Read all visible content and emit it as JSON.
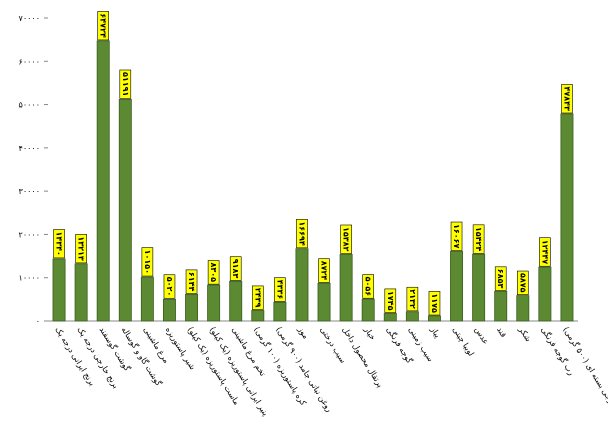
{
  "chart_data": {
    "type": "bar",
    "categories": [
      "برنج ایرانی درجه یک",
      "برنج خارجی درجه یک",
      "گوشت گوسفند",
      "گوشت گاو و گوساله",
      "مرغ ماشینی",
      "شیر پاستوریزه",
      "ماست پاستوریزه (یک کیلو)",
      "پنیر ایرانی پاستوریزه (یک کیلو)",
      "تخم مرغ ماشینی",
      "کره پاستوریزه (۱۰۰ گرمی)",
      "روغن نباتی جامد (۹۰۰ گرمی)",
      "موز",
      "سیب درختی",
      "پرتقال محصول داخل",
      "خیار",
      "گوجه فرنگی",
      "سیب زمینی",
      "پیاز",
      "لوبیا چیتی",
      "عدس",
      "قند",
      "شکر",
      "رب گوجه فرنگی",
      "چای خارجی بسته ای (۵۰۰ گرمی)"
    ],
    "values": [
      14340,
      13213,
      64724,
      51191,
      10150,
      5020,
      6144,
      8305,
      9183,
      2439,
      4336,
      16694,
      8724,
      15382,
      5056,
      1745,
      2132,
      1175,
      16067,
      15424,
      6853,
      5875,
      12447,
      47843
    ],
    "value_labels": [
      "۱۴۳۴۰",
      "۱۳۲۱۳",
      "۶۴۷۲۴",
      "۵۱۱۹۱",
      "۱۰۱۵۰",
      "۵۰۲۰",
      "۶۱۴۴",
      "۸۳۰۵",
      "۹۱۸۳",
      "۲۴۳۹",
      "۴۳۳۶",
      "۱۶۶۹۴",
      "۸۷۲۴",
      "۱۵۳۸۲",
      "۵۰۵۶",
      "۱۷۴۵",
      "۲۱۳۲",
      "۱۱۷۵",
      "۱۶۰۶۷",
      "۱۵۴۲۴",
      "۶۸۵۳",
      "۵۸۷۵",
      "۱۲۴۴۷",
      "۴۷۸۴۳"
    ],
    "color": "#5b8a32",
    "ylim": [
      0,
      70000
    ],
    "yticks": [
      {
        "value": 0,
        "label": "۰"
      },
      {
        "value": 10000,
        "label": "۱۰۰۰۰"
      },
      {
        "value": 20000,
        "label": "۲۰۰۰۰"
      },
      {
        "value": 30000,
        "label": "۳۰۰۰۰"
      },
      {
        "value": 40000,
        "label": "۴۰۰۰۰"
      },
      {
        "value": 50000,
        "label": "۵۰۰۰۰"
      },
      {
        "value": 60000,
        "label": "۶۰۰۰۰"
      },
      {
        "value": 70000,
        "label": "۷۰۰۰۰"
      }
    ]
  }
}
